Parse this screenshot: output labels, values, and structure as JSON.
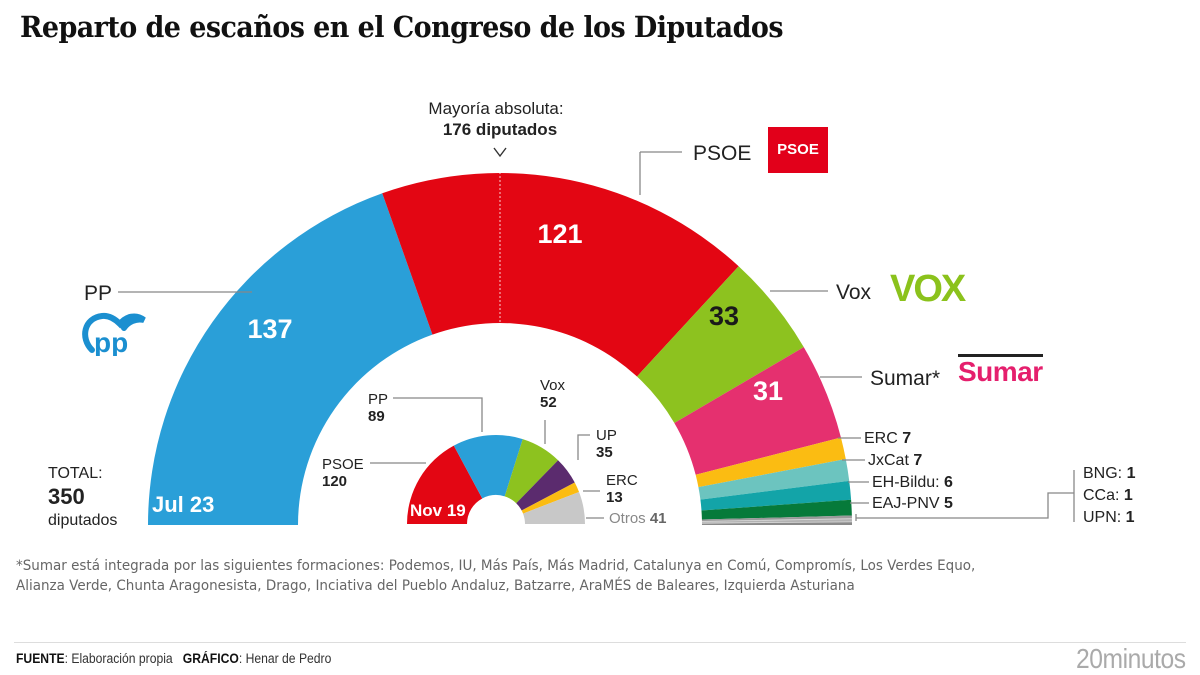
{
  "title": "Reparto de escaños en el Congreso de los Diputados",
  "majority": {
    "line1": "Mayoría absoluta:",
    "line2": "176 diputados",
    "arrow": "chevron-down"
  },
  "total": {
    "label": "TOTAL:",
    "value": "350",
    "unit": "diputados"
  },
  "logos": {
    "pp": "PP logo",
    "psoe": "PSOE",
    "vox": "VOX",
    "sumar": "Sumar"
  },
  "chart_data": [
    {
      "type": "pie",
      "subtype": "parliament-hemicycle",
      "title": "Jul 23",
      "total": 350,
      "majority": 176,
      "categories": [
        "PP",
        "PSOE",
        "Vox",
        "Sumar*",
        "ERC",
        "JxCat",
        "EH-Bildu:",
        "EAJ-PNV",
        "BNG:",
        "CCa:",
        "UPN:"
      ],
      "values": [
        137,
        121,
        33,
        31,
        7,
        7,
        6,
        5,
        1,
        1,
        1
      ],
      "colors": [
        "#2a9fd8",
        "#e30613",
        "#8dc21f",
        "#e5306f",
        "#fbbc12",
        "#6cc4bf",
        "#13a4a8",
        "#067a3a",
        "#9a9a9a",
        "#b2b2b2",
        "#8a8a8a"
      ],
      "labels": {
        "PP": "PP",
        "PSOE": "PSOE",
        "Vox": "Vox",
        "Sumar": "Sumar*",
        "ERC": "ERC",
        "JxCat": "JxCat",
        "EH-Bildu": "EH-Bildu:",
        "EAJ-PNV": "EAJ-PNV",
        "BNG": "BNG:",
        "CCa": "CCa:",
        "UPN": "UPN:"
      }
    },
    {
      "type": "pie",
      "subtype": "parliament-hemicycle",
      "title": "Nov 19",
      "categories": [
        "PSOE",
        "PP",
        "Vox",
        "UP",
        "ERC",
        "Otros"
      ],
      "values": [
        120,
        89,
        52,
        35,
        13,
        41
      ],
      "colors": [
        "#e30613",
        "#2a9fd8",
        "#8dc21f",
        "#5b2b6e",
        "#fbbc12",
        "#c8c8c8"
      ]
    }
  ],
  "footnote": "*Sumar está integrada por las siguientes formaciones: Podemos, IU, Más País, Más Madrid, Catalunya en Comú,  Compromís, Los Verdes Equo, Alianza Verde, Chunta Aragonesista, Drago, Inciativa del Pueblo Andaluz, Batzarre, AraMÉS de Baleares, Izquierda Asturiana",
  "footer": {
    "source_label": "FUENTE",
    "source": ": Elaboración propia",
    "graphic_label": "GRÁFICO",
    "graphic": ": Henar de Pedro",
    "brand": "20minutos"
  }
}
